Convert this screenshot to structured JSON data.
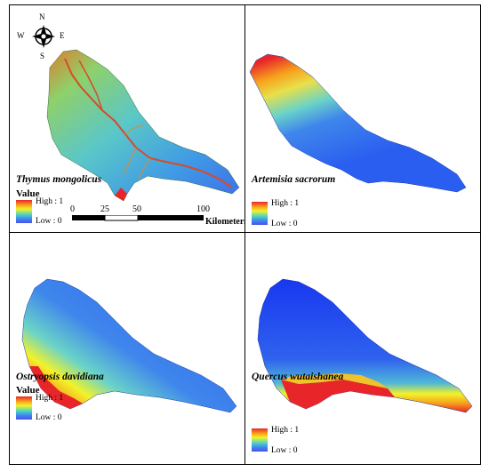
{
  "compass": {
    "north": "N",
    "south": "S",
    "east": "E",
    "west": "W"
  },
  "scale_bar": {
    "ticks": [
      "0",
      "25",
      "50",
      "100"
    ],
    "unit": "Kilometers"
  },
  "legend": {
    "title": "Value",
    "high_label": "High : 1",
    "low_label": "Low : 0"
  },
  "panels": [
    {
      "species": "Thymus mongolicus"
    },
    {
      "species": "Artemisia sacrorum"
    },
    {
      "species": "Ostryopsis davidiana"
    },
    {
      "species": "Quercus wutaishanea"
    }
  ],
  "colors": {
    "high": "#e8262a",
    "mid_high": "#f7a21c",
    "mid": "#f2f22a",
    "mid_low": "#53d6b8",
    "low": "#4b50e8"
  }
}
